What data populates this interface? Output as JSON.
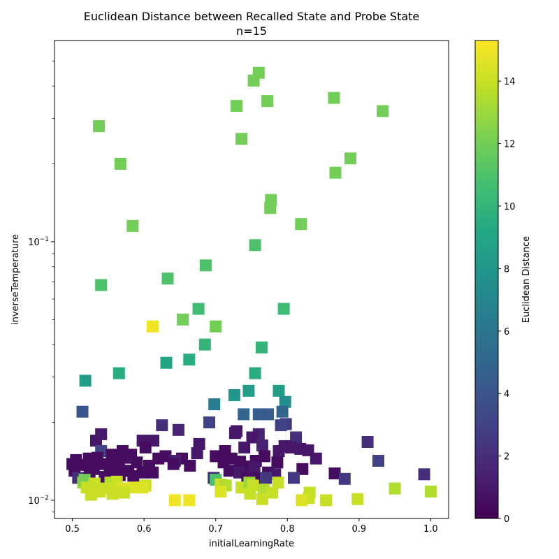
{
  "chart_data": {
    "type": "scatter",
    "title": "Euclidean Distance between Recalled State and Probe State",
    "subtitle": "n=15",
    "xlabel": "initialLearningRate",
    "ylabel": "inverseTemperature",
    "xlim": [
      0.475,
      1.025
    ],
    "ylim": [
      0.0085,
      0.6
    ],
    "yscale": "log",
    "x_ticks": [
      0.5,
      0.6,
      0.7,
      0.8,
      0.9,
      1.0
    ],
    "x_tick_labels": [
      "0.5",
      "0.6",
      "0.7",
      "0.8",
      "0.9",
      "1.0"
    ],
    "y_major_ticks": [
      0.01,
      0.1
    ],
    "y_major_tick_labels": [
      "10⁻²",
      "10⁻¹"
    ],
    "y_tick_base": "10",
    "y_tick_exps": [
      "−2",
      "−1"
    ],
    "colorbar": {
      "label": "Euclidean Distance",
      "min": 0,
      "max": 15.3,
      "ticks": [
        0,
        2,
        4,
        6,
        8,
        10,
        12,
        14
      ],
      "tick_labels": [
        "0",
        "2",
        "4",
        "6",
        "8",
        "10",
        "12",
        "14"
      ],
      "colormap": "viridis"
    },
    "marker": "square",
    "points": [
      {
        "x": 0.76,
        "y": 0.45,
        "c": 12
      },
      {
        "x": 0.753,
        "y": 0.42,
        "c": 12
      },
      {
        "x": 0.865,
        "y": 0.36,
        "c": 12
      },
      {
        "x": 0.772,
        "y": 0.35,
        "c": 12
      },
      {
        "x": 0.729,
        "y": 0.335,
        "c": 12
      },
      {
        "x": 0.933,
        "y": 0.32,
        "c": 12
      },
      {
        "x": 0.537,
        "y": 0.28,
        "c": 12
      },
      {
        "x": 0.736,
        "y": 0.25,
        "c": 12
      },
      {
        "x": 0.888,
        "y": 0.21,
        "c": 12
      },
      {
        "x": 0.567,
        "y": 0.2,
        "c": 12
      },
      {
        "x": 0.867,
        "y": 0.185,
        "c": 12
      },
      {
        "x": 0.777,
        "y": 0.145,
        "c": 12
      },
      {
        "x": 0.776,
        "y": 0.135,
        "c": 12
      },
      {
        "x": 0.584,
        "y": 0.115,
        "c": 12
      },
      {
        "x": 0.819,
        "y": 0.117,
        "c": 12
      },
      {
        "x": 0.755,
        "y": 0.097,
        "c": 11
      },
      {
        "x": 0.686,
        "y": 0.081,
        "c": 11
      },
      {
        "x": 0.54,
        "y": 0.068,
        "c": 11
      },
      {
        "x": 0.633,
        "y": 0.072,
        "c": 11
      },
      {
        "x": 0.676,
        "y": 0.055,
        "c": 10.5
      },
      {
        "x": 0.795,
        "y": 0.055,
        "c": 10.5
      },
      {
        "x": 0.654,
        "y": 0.05,
        "c": 12
      },
      {
        "x": 0.7,
        "y": 0.047,
        "c": 12
      },
      {
        "x": 0.612,
        "y": 0.047,
        "c": 15
      },
      {
        "x": 0.685,
        "y": 0.04,
        "c": 10
      },
      {
        "x": 0.764,
        "y": 0.039,
        "c": 10
      },
      {
        "x": 0.663,
        "y": 0.035,
        "c": 9.5
      },
      {
        "x": 0.631,
        "y": 0.034,
        "c": 9
      },
      {
        "x": 0.565,
        "y": 0.031,
        "c": 9.5
      },
      {
        "x": 0.755,
        "y": 0.031,
        "c": 9.5
      },
      {
        "x": 0.518,
        "y": 0.029,
        "c": 8.5
      },
      {
        "x": 0.746,
        "y": 0.0265,
        "c": 8.5
      },
      {
        "x": 0.788,
        "y": 0.0265,
        "c": 8.5
      },
      {
        "x": 0.726,
        "y": 0.0255,
        "c": 8
      },
      {
        "x": 0.797,
        "y": 0.024,
        "c": 7.5
      },
      {
        "x": 0.698,
        "y": 0.0235,
        "c": 6.5
      },
      {
        "x": 0.514,
        "y": 0.022,
        "c": 4
      },
      {
        "x": 0.793,
        "y": 0.022,
        "c": 5
      },
      {
        "x": 0.739,
        "y": 0.0215,
        "c": 5
      },
      {
        "x": 0.76,
        "y": 0.0215,
        "c": 4.5
      },
      {
        "x": 0.773,
        "y": 0.0215,
        "c": 4.5
      },
      {
        "x": 0.691,
        "y": 0.02,
        "c": 3
      },
      {
        "x": 0.798,
        "y": 0.0197,
        "c": 2.5
      },
      {
        "x": 0.791,
        "y": 0.0195,
        "c": 3
      },
      {
        "x": 0.625,
        "y": 0.0195,
        "c": 2
      },
      {
        "x": 0.648,
        "y": 0.0187,
        "c": 1.5
      },
      {
        "x": 0.729,
        "y": 0.0185,
        "c": 1
      },
      {
        "x": 0.54,
        "y": 0.018,
        "c": 1
      },
      {
        "x": 0.76,
        "y": 0.018,
        "c": 1.5
      },
      {
        "x": 0.727,
        "y": 0.0182,
        "c": 1
      },
      {
        "x": 0.751,
        "y": 0.0175,
        "c": 1
      },
      {
        "x": 0.812,
        "y": 0.0175,
        "c": 2
      },
      {
        "x": 0.533,
        "y": 0.017,
        "c": 1
      },
      {
        "x": 0.598,
        "y": 0.017,
        "c": 1
      },
      {
        "x": 0.613,
        "y": 0.017,
        "c": 1
      },
      {
        "x": 0.912,
        "y": 0.0168,
        "c": 2
      },
      {
        "x": 0.677,
        "y": 0.0165,
        "c": 1
      },
      {
        "x": 0.765,
        "y": 0.0163,
        "c": 1.5
      },
      {
        "x": 0.796,
        "y": 0.0162,
        "c": 1
      },
      {
        "x": 0.818,
        "y": 0.0158,
        "c": 1
      },
      {
        "x": 0.829,
        "y": 0.0156,
        "c": 1
      },
      {
        "x": 0.54,
        "y": 0.0155,
        "c": 3
      },
      {
        "x": 0.57,
        "y": 0.0155,
        "c": 0.5
      },
      {
        "x": 0.602,
        "y": 0.016,
        "c": 0.5
      },
      {
        "x": 0.713,
        "y": 0.0155,
        "c": 0.5
      },
      {
        "x": 0.74,
        "y": 0.016,
        "c": 1
      },
      {
        "x": 0.788,
        "y": 0.0155,
        "c": 1
      },
      {
        "x": 0.805,
        "y": 0.016,
        "c": 1
      },
      {
        "x": 0.555,
        "y": 0.015,
        "c": 0.5
      },
      {
        "x": 0.582,
        "y": 0.015,
        "c": 0.5
      },
      {
        "x": 0.674,
        "y": 0.0152,
        "c": 1
      },
      {
        "x": 0.63,
        "y": 0.0148,
        "c": 0.5
      },
      {
        "x": 0.653,
        "y": 0.0145,
        "c": 0.5
      },
      {
        "x": 0.7,
        "y": 0.0148,
        "c": 0.5
      },
      {
        "x": 0.722,
        "y": 0.0145,
        "c": 0.5
      },
      {
        "x": 0.768,
        "y": 0.0148,
        "c": 0.5
      },
      {
        "x": 0.84,
        "y": 0.0145,
        "c": 1
      },
      {
        "x": 0.927,
        "y": 0.0142,
        "c": 3
      },
      {
        "x": 0.505,
        "y": 0.0143,
        "c": 0.5
      },
      {
        "x": 0.523,
        "y": 0.0145,
        "c": 0.5
      },
      {
        "x": 0.535,
        "y": 0.0146,
        "c": 0.5
      },
      {
        "x": 0.56,
        "y": 0.0142,
        "c": 0.5
      },
      {
        "x": 0.575,
        "y": 0.0146,
        "c": 0.5
      },
      {
        "x": 0.59,
        "y": 0.014,
        "c": 0.5
      },
      {
        "x": 0.62,
        "y": 0.0145,
        "c": 0.5
      },
      {
        "x": 0.643,
        "y": 0.0142,
        "c": 1.5
      },
      {
        "x": 0.641,
        "y": 0.0138,
        "c": 0.5
      },
      {
        "x": 0.664,
        "y": 0.0136,
        "c": 0.5
      },
      {
        "x": 0.711,
        "y": 0.014,
        "c": 0.5
      },
      {
        "x": 0.734,
        "y": 0.0141,
        "c": 0.5
      },
      {
        "x": 0.756,
        "y": 0.0142,
        "c": 0.5
      },
      {
        "x": 0.786,
        "y": 0.014,
        "c": 0.5
      },
      {
        "x": 0.5,
        "y": 0.0138,
        "c": 0.5
      },
      {
        "x": 0.515,
        "y": 0.0137,
        "c": 0.5
      },
      {
        "x": 0.546,
        "y": 0.0138,
        "c": 0.5
      },
      {
        "x": 0.565,
        "y": 0.0135,
        "c": 0.5
      },
      {
        "x": 0.607,
        "y": 0.0136,
        "c": 0.5
      },
      {
        "x": 0.742,
        "y": 0.0135,
        "c": 0.5
      },
      {
        "x": 0.754,
        "y": 0.0134,
        "c": 1
      },
      {
        "x": 0.821,
        "y": 0.0132,
        "c": 0.5
      },
      {
        "x": 0.503,
        "y": 0.013,
        "c": 0.5
      },
      {
        "x": 0.53,
        "y": 0.0132,
        "c": 0.5
      },
      {
        "x": 0.552,
        "y": 0.0128,
        "c": 0.5
      },
      {
        "x": 0.578,
        "y": 0.013,
        "c": 0.5
      },
      {
        "x": 0.598,
        "y": 0.0128,
        "c": 0.5
      },
      {
        "x": 0.612,
        "y": 0.0128,
        "c": 0.5
      },
      {
        "x": 0.719,
        "y": 0.013,
        "c": 0.5
      },
      {
        "x": 0.733,
        "y": 0.0128,
        "c": 1
      },
      {
        "x": 0.773,
        "y": 0.0128,
        "c": 0.5
      },
      {
        "x": 0.783,
        "y": 0.0126,
        "c": 1
      },
      {
        "x": 0.866,
        "y": 0.0127,
        "c": 0.5
      },
      {
        "x": 0.991,
        "y": 0.0126,
        "c": 2
      },
      {
        "x": 0.508,
        "y": 0.0122,
        "c": 2
      },
      {
        "x": 0.524,
        "y": 0.0124,
        "c": 0.5
      },
      {
        "x": 0.545,
        "y": 0.0123,
        "c": 0.5
      },
      {
        "x": 0.566,
        "y": 0.0125,
        "c": 0.5
      },
      {
        "x": 0.585,
        "y": 0.0124,
        "c": 0.5
      },
      {
        "x": 0.697,
        "y": 0.0122,
        "c": 2
      },
      {
        "x": 0.7,
        "y": 0.012,
        "c": 11
      },
      {
        "x": 0.744,
        "y": 0.0122,
        "c": 0.5
      },
      {
        "x": 0.759,
        "y": 0.0121,
        "c": 0.5
      },
      {
        "x": 0.77,
        "y": 0.0122,
        "c": 2.5
      },
      {
        "x": 0.809,
        "y": 0.0122,
        "c": 2.5
      },
      {
        "x": 0.88,
        "y": 0.0121,
        "c": 2.5
      },
      {
        "x": 0.515,
        "y": 0.0117,
        "c": 13
      },
      {
        "x": 0.517,
        "y": 0.012,
        "c": 12
      },
      {
        "x": 0.531,
        "y": 0.0116,
        "c": 14
      },
      {
        "x": 0.553,
        "y": 0.0117,
        "c": 13.5
      },
      {
        "x": 0.562,
        "y": 0.0118,
        "c": 14
      },
      {
        "x": 0.602,
        "y": 0.0114,
        "c": 14
      },
      {
        "x": 0.707,
        "y": 0.0115,
        "c": 14
      },
      {
        "x": 0.714,
        "y": 0.0114,
        "c": 13.5
      },
      {
        "x": 0.736,
        "y": 0.0112,
        "c": 14
      },
      {
        "x": 0.747,
        "y": 0.0117,
        "c": 13
      },
      {
        "x": 0.752,
        "y": 0.0114,
        "c": 14
      },
      {
        "x": 0.787,
        "y": 0.0117,
        "c": 14
      },
      {
        "x": 0.52,
        "y": 0.0112,
        "c": 14
      },
      {
        "x": 0.545,
        "y": 0.0111,
        "c": 14
      },
      {
        "x": 0.57,
        "y": 0.0111,
        "c": 14.5
      },
      {
        "x": 0.586,
        "y": 0.0112,
        "c": 14.5
      },
      {
        "x": 0.598,
        "y": 0.0112,
        "c": 14.5
      },
      {
        "x": 0.767,
        "y": 0.011,
        "c": 13.5
      },
      {
        "x": 0.831,
        "y": 0.0107,
        "c": 14
      },
      {
        "x": 0.95,
        "y": 0.0111,
        "c": 13.5
      },
      {
        "x": 1.0,
        "y": 0.0108,
        "c": 13.5
      },
      {
        "x": 0.526,
        "y": 0.0105,
        "c": 14
      },
      {
        "x": 0.538,
        "y": 0.0108,
        "c": 14
      },
      {
        "x": 0.556,
        "y": 0.0106,
        "c": 14
      },
      {
        "x": 0.572,
        "y": 0.0107,
        "c": 14
      },
      {
        "x": 0.707,
        "y": 0.0108,
        "c": 14.5
      },
      {
        "x": 0.748,
        "y": 0.0106,
        "c": 14
      },
      {
        "x": 0.779,
        "y": 0.0107,
        "c": 14
      },
      {
        "x": 0.83,
        "y": 0.0102,
        "c": 14
      },
      {
        "x": 0.898,
        "y": 0.0101,
        "c": 14
      },
      {
        "x": 0.643,
        "y": 0.01,
        "c": 15
      },
      {
        "x": 0.663,
        "y": 0.01,
        "c": 15
      },
      {
        "x": 0.765,
        "y": 0.0101,
        "c": 14
      },
      {
        "x": 0.82,
        "y": 0.01,
        "c": 14.5
      },
      {
        "x": 0.854,
        "y": 0.01,
        "c": 14
      }
    ]
  }
}
